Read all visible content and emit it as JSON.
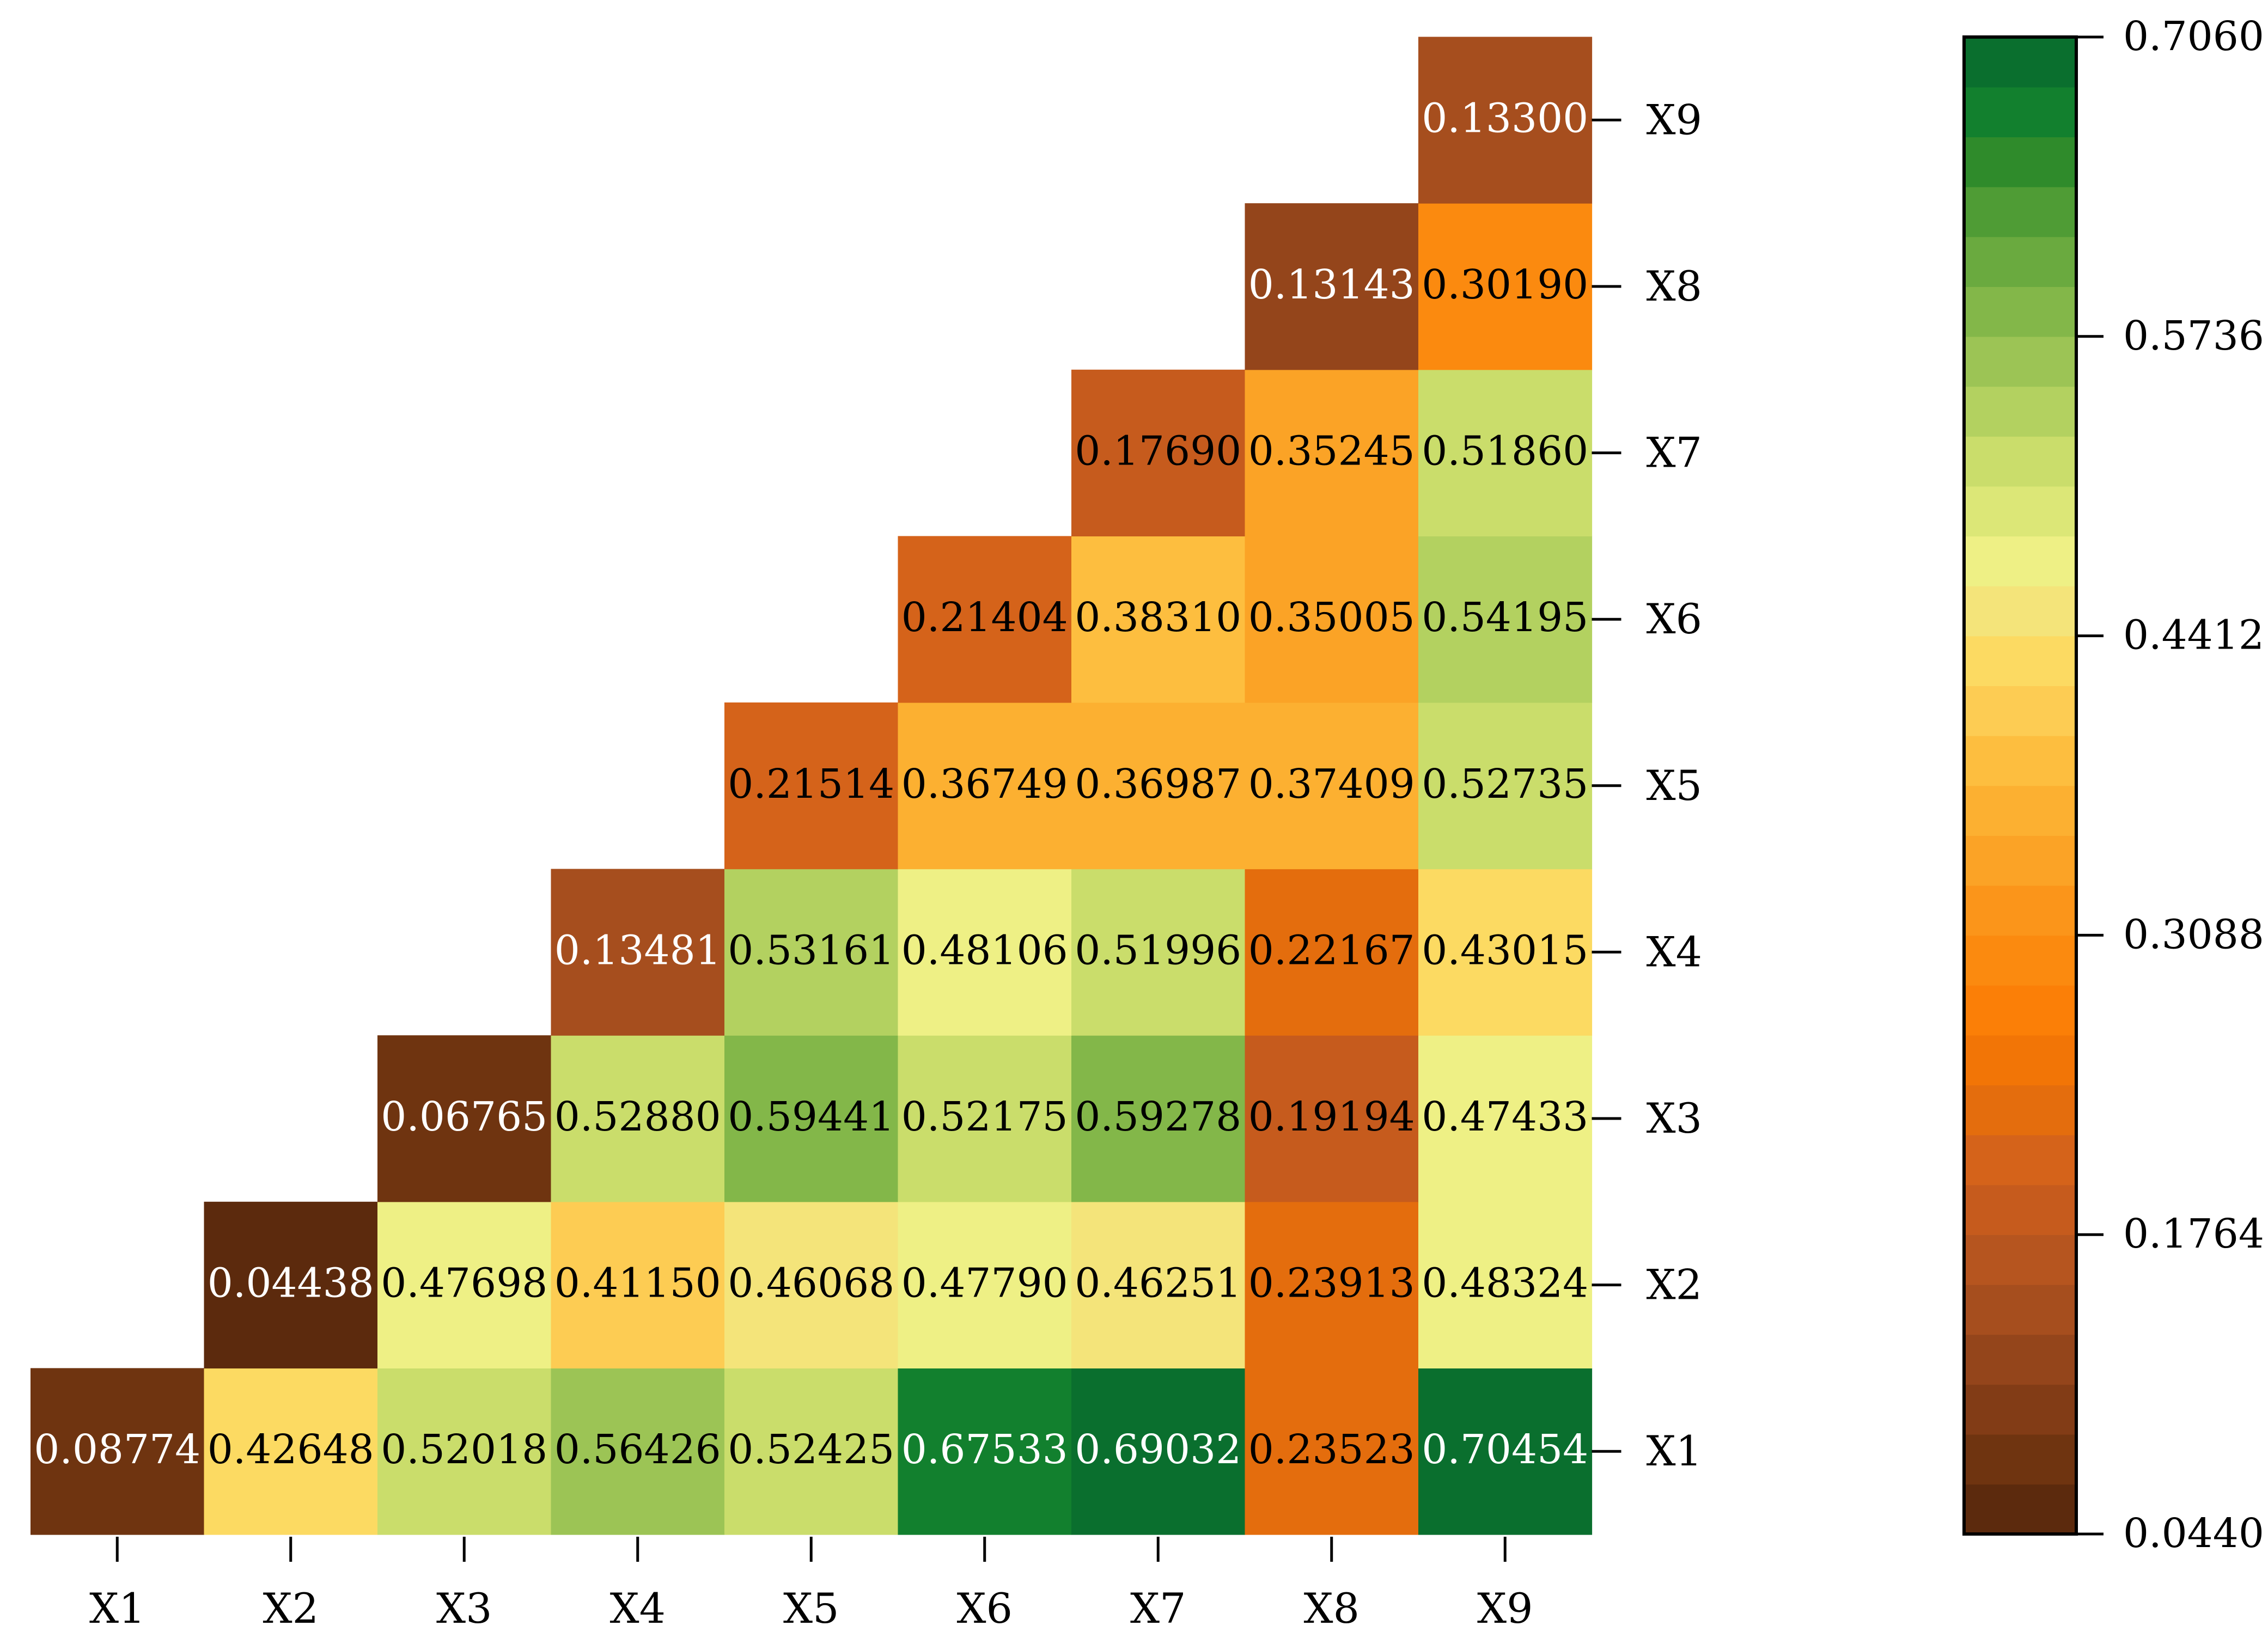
{
  "chart_data": {
    "type": "heatmap",
    "title": "",
    "xlabel": "",
    "ylabel": "",
    "x_categories": [
      "X1",
      "X2",
      "X3",
      "X4",
      "X5",
      "X6",
      "X7",
      "X8",
      "X9"
    ],
    "y_categories": [
      "X1",
      "X2",
      "X3",
      "X4",
      "X5",
      "X6",
      "X7",
      "X8",
      "X9"
    ],
    "layout": "upper-triangular (row Xi shows columns Xi..X9)",
    "cells": [
      {
        "row": "X1",
        "col": "X1",
        "value": 0.08774,
        "label": "0.08774"
      },
      {
        "row": "X1",
        "col": "X2",
        "value": 0.42648,
        "label": "0.42648"
      },
      {
        "row": "X1",
        "col": "X3",
        "value": 0.52018,
        "label": "0.52018"
      },
      {
        "row": "X1",
        "col": "X4",
        "value": 0.56426,
        "label": "0.56426"
      },
      {
        "row": "X1",
        "col": "X5",
        "value": 0.52425,
        "label": "0.52425"
      },
      {
        "row": "X1",
        "col": "X6",
        "value": 0.67533,
        "label": "0.67533"
      },
      {
        "row": "X1",
        "col": "X7",
        "value": 0.69032,
        "label": "0.69032"
      },
      {
        "row": "X1",
        "col": "X8",
        "value": 0.23523,
        "label": "0.23523"
      },
      {
        "row": "X1",
        "col": "X9",
        "value": 0.70454,
        "label": "0.70454"
      },
      {
        "row": "X2",
        "col": "X2",
        "value": 0.04438,
        "label": "0.04438"
      },
      {
        "row": "X2",
        "col": "X3",
        "value": 0.47698,
        "label": "0.47698"
      },
      {
        "row": "X2",
        "col": "X4",
        "value": 0.4115,
        "label": "0.41150"
      },
      {
        "row": "X2",
        "col": "X5",
        "value": 0.46068,
        "label": "0.46068"
      },
      {
        "row": "X2",
        "col": "X6",
        "value": 0.4779,
        "label": "0.47790"
      },
      {
        "row": "X2",
        "col": "X7",
        "value": 0.46251,
        "label": "0.46251"
      },
      {
        "row": "X2",
        "col": "X8",
        "value": 0.23913,
        "label": "0.23913"
      },
      {
        "row": "X2",
        "col": "X9",
        "value": 0.48324,
        "label": "0.48324"
      },
      {
        "row": "X3",
        "col": "X3",
        "value": 0.06765,
        "label": "0.06765"
      },
      {
        "row": "X3",
        "col": "X4",
        "value": 0.5288,
        "label": "0.52880"
      },
      {
        "row": "X3",
        "col": "X5",
        "value": 0.59441,
        "label": "0.59441"
      },
      {
        "row": "X3",
        "col": "X6",
        "value": 0.52175,
        "label": "0.52175"
      },
      {
        "row": "X3",
        "col": "X7",
        "value": 0.59278,
        "label": "0.59278"
      },
      {
        "row": "X3",
        "col": "X8",
        "value": 0.19194,
        "label": "0.19194"
      },
      {
        "row": "X3",
        "col": "X9",
        "value": 0.47433,
        "label": "0.47433"
      },
      {
        "row": "X4",
        "col": "X4",
        "value": 0.13481,
        "label": "0.13481"
      },
      {
        "row": "X4",
        "col": "X5",
        "value": 0.53161,
        "label": "0.53161"
      },
      {
        "row": "X4",
        "col": "X6",
        "value": 0.48106,
        "label": "0.48106"
      },
      {
        "row": "X4",
        "col": "X7",
        "value": 0.51996,
        "label": "0.51996"
      },
      {
        "row": "X4",
        "col": "X8",
        "value": 0.22167,
        "label": "0.22167"
      },
      {
        "row": "X4",
        "col": "X9",
        "value": 0.43015,
        "label": "0.43015"
      },
      {
        "row": "X5",
        "col": "X5",
        "value": 0.21514,
        "label": "0.21514"
      },
      {
        "row": "X5",
        "col": "X6",
        "value": 0.36749,
        "label": "0.36749"
      },
      {
        "row": "X5",
        "col": "X7",
        "value": 0.36987,
        "label": "0.36987"
      },
      {
        "row": "X5",
        "col": "X8",
        "value": 0.37409,
        "label": "0.37409"
      },
      {
        "row": "X5",
        "col": "X9",
        "value": 0.52735,
        "label": "0.52735"
      },
      {
        "row": "X6",
        "col": "X6",
        "value": 0.21404,
        "label": "0.21404"
      },
      {
        "row": "X6",
        "col": "X7",
        "value": 0.3831,
        "label": "0.38310"
      },
      {
        "row": "X6",
        "col": "X8",
        "value": 0.35005,
        "label": "0.35005"
      },
      {
        "row": "X6",
        "col": "X9",
        "value": 0.54195,
        "label": "0.54195"
      },
      {
        "row": "X7",
        "col": "X7",
        "value": 0.1769,
        "label": "0.17690"
      },
      {
        "row": "X7",
        "col": "X8",
        "value": 0.35245,
        "label": "0.35245"
      },
      {
        "row": "X7",
        "col": "X9",
        "value": 0.5186,
        "label": "0.51860"
      },
      {
        "row": "X8",
        "col": "X8",
        "value": 0.13143,
        "label": "0.13143"
      },
      {
        "row": "X8",
        "col": "X9",
        "value": 0.3019,
        "label": "0.30190"
      },
      {
        "row": "X9",
        "col": "X9",
        "value": 0.133,
        "label": "0.13300"
      }
    ],
    "colorbar": {
      "min": 0.044,
      "max": 0.706,
      "ticks": [
        "0.0440",
        "0.1764",
        "0.3088",
        "0.4412",
        "0.5736",
        "0.7060"
      ],
      "steps": 30,
      "colors": [
        "#5c2a0d",
        "#6f3410",
        "#823c16",
        "#94451b",
        "#a64e1e",
        "#b6551f",
        "#c65b1d",
        "#d5631a",
        "#e46d0d",
        "#f27506",
        "#fb7f07",
        "#fb8a0f",
        "#fb951a",
        "#fba326",
        "#fcb031",
        "#fdbe3f",
        "#fdcc53",
        "#fcda62",
        "#f4e47a",
        "#eef085",
        "#dce777",
        "#cadd6b",
        "#b3d160",
        "#9cc455",
        "#83b749",
        "#6aaa3f",
        "#4f9c35",
        "#2f8b2b",
        "#12802e",
        "#0a6f2e"
      ]
    },
    "legend": "right colorbar",
    "grid": false
  }
}
